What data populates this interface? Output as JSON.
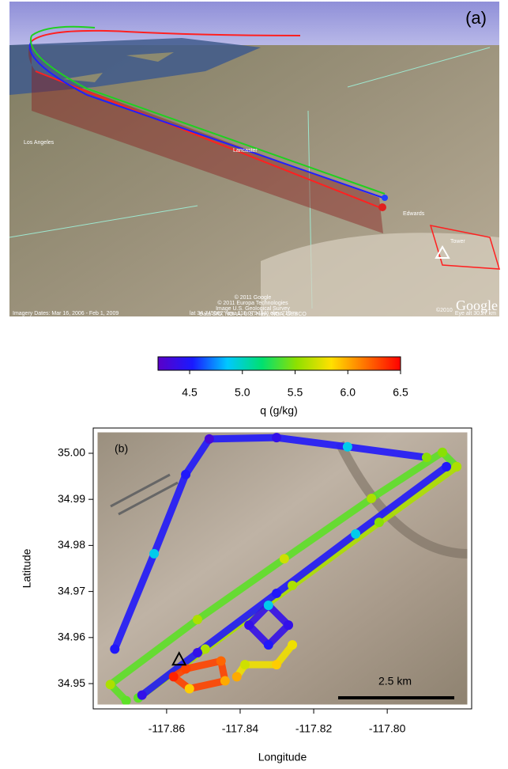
{
  "panel_a": {
    "label": "(a)",
    "places": [
      "Los Angeles",
      "Lancaster",
      "Edwards",
      "Tower"
    ],
    "logo": "Google",
    "logo_year": "©2010",
    "credits": [
      "© 2011 Google",
      "© 2011 Europa Technologies",
      "Image U.S. Geological Survey",
      "Data SIO, NOAA, U.S. Navy, NGA, GEBCO"
    ],
    "imagery_dates": "Imagery Dates: Mar 16, 2006 - Feb 1, 2009",
    "position": "lat 34.745562°  lon -118.079484°  elev 710 m",
    "eye_alt": "Eye alt 30.27 km"
  },
  "chart_data": [
    {
      "type": "colorbar",
      "label": "q (g/kg)",
      "clim": [
        4.2,
        6.5
      ],
      "ticks": [
        4.5,
        {
          "value": 5.0,
          "label": "5.0"
        },
        5.5,
        {
          "value": 6.0,
          "label": "6.0"
        },
        6.5
      ],
      "colormap": [
        "#5a00c8",
        "#1a1aff",
        "#00c8ff",
        "#00e070",
        "#8fe000",
        "#ffe000",
        "#ff7000",
        "#ff0000"
      ]
    },
    {
      "type": "scatter",
      "panel_label": "(b)",
      "xlabel": "Longitude",
      "ylabel": "Latitude",
      "scale_bar": "2.5 km",
      "xlim": [
        -117.8791,
        -117.7779
      ],
      "ylim": [
        34.9452,
        35.0048
      ],
      "xticks": [
        -117.86,
        -117.84,
        -117.82,
        {
          "value": -117.8,
          "label": "-117.80"
        }
      ],
      "yticks": [
        34.95,
        34.96,
        34.97,
        34.98,
        34.99,
        {
          "value": 35.0,
          "label": "35.00"
        }
      ],
      "site": {
        "x": -117.8566,
        "y": 34.9553
      },
      "tracks": [
        {
          "x": [
            -117.871,
            -117.8753,
            -117.8516,
            -117.828,
            -117.8043,
            -117.785,
            -117.7811
          ],
          "y": [
            34.9463,
            34.9498,
            34.9639,
            34.9771,
            34.9902,
            35.0002,
            34.9971
          ],
          "q": [
            5.4,
            5.6,
            5.6,
            5.7,
            5.6,
            5.5,
            5.6
          ]
        },
        {
          "x": [
            -117.7811,
            -117.8022,
            -117.8258,
            -117.8495,
            -117.8677
          ],
          "y": [
            34.9971,
            34.985,
            34.9713,
            34.9575,
            34.9469
          ],
          "q": [
            5.6,
            5.5,
            5.6,
            5.6,
            5.4
          ]
        },
        {
          "x": [
            -117.7839,
            -117.8086,
            -117.8301,
            -117.8516,
            -117.8667
          ],
          "y": [
            34.9971,
            34.9825,
            34.9696,
            34.9567,
            34.9475
          ],
          "q": [
            4.5,
            4.9,
            4.5,
            4.4,
            4.4
          ]
        },
        {
          "x": [
            -117.8741,
            -117.8634,
            -117.8548,
            -117.8484,
            -117.8301,
            -117.8108,
            -117.7893
          ],
          "y": [
            34.9575,
            34.9782,
            34.9954,
            35.0031,
            35.0034,
            35.0014,
            34.9991
          ],
          "q": [
            4.5,
            4.9,
            4.5,
            4.3,
            4.4,
            4.9,
            5.5
          ]
        },
        {
          "x": [
            -117.8269,
            -117.8323,
            -117.8376,
            -117.8323,
            -117.8269
          ],
          "y": [
            34.9627,
            34.967,
            34.9627,
            34.9584,
            34.9627
          ],
          "q": [
            4.4,
            4.9,
            4.4,
            4.5,
            4.4
          ]
        },
        {
          "x": [
            -117.8258,
            -117.8301,
            -117.8387,
            -117.8409
          ],
          "y": [
            34.9584,
            34.9541,
            34.9541,
            34.9515
          ],
          "q": [
            5.8,
            5.9,
            5.7,
            6.0
          ]
        },
        {
          "x": [
            -117.8548,
            -117.8452,
            -117.8441,
            -117.8538,
            -117.8581,
            -117.8548
          ],
          "y": [
            34.9532,
            34.9549,
            34.9506,
            34.9489,
            34.9515,
            34.9532
          ],
          "q": [
            6.3,
            6.2,
            6.0,
            5.9,
            6.4,
            6.3
          ]
        }
      ]
    }
  ]
}
